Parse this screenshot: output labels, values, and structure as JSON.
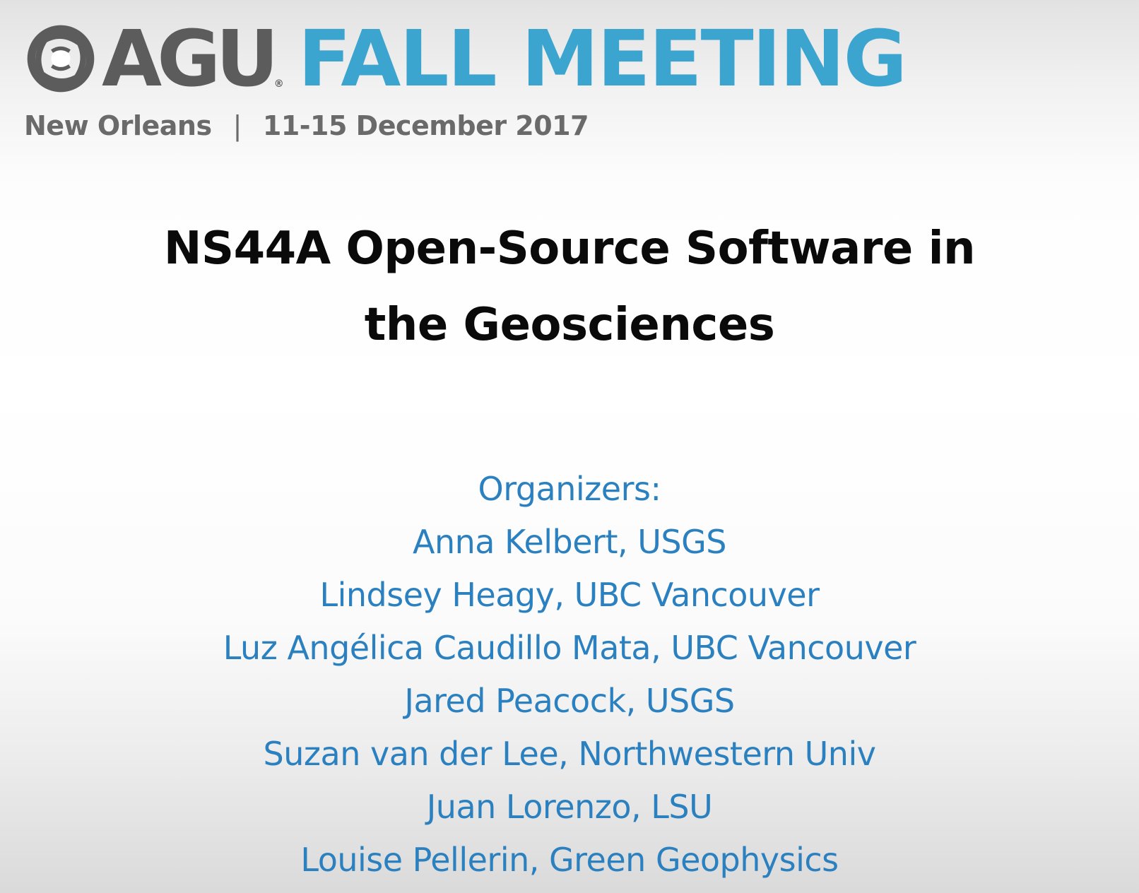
{
  "header": {
    "logo_text": "AGU",
    "registered_mark": "®",
    "event_name": "FALL MEETING",
    "location": "New Orleans",
    "separator": "|",
    "dates": "11-15 December 2017"
  },
  "session": {
    "title_line1": "NS44A Open-Source Software in",
    "title_line2": "the Geosciences"
  },
  "organizers": {
    "heading": "Organizers:",
    "people": [
      "Anna Kelbert, USGS",
      "Lindsey Heagy, UBC Vancouver",
      "Luz Angélica Caudillo Mata, UBC Vancouver",
      "Jared Peacock, USGS",
      "Suzan van der Lee, Northwestern Univ",
      "Juan Lorenzo, LSU",
      "Louise Pellerin, Green Geophysics"
    ]
  },
  "colors": {
    "agu_gray": "#5c5c5c",
    "fall_meeting_blue": "#3ba4cf",
    "organizer_blue": "#2b80c0",
    "title_black": "#0a0a0a"
  },
  "icons": {
    "logo": "agu-swirl-logo-icon"
  }
}
